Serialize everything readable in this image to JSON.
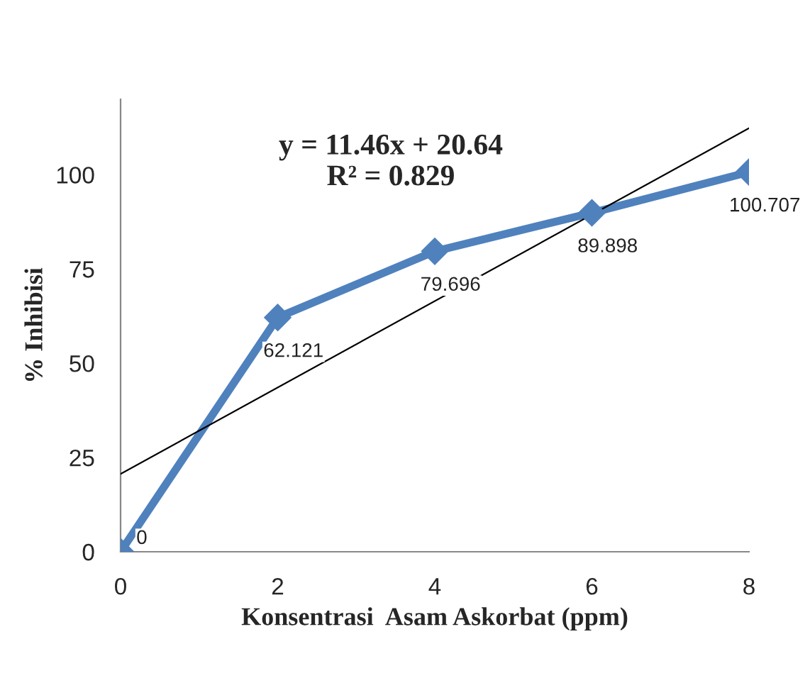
{
  "chart_data": {
    "type": "line",
    "xlabel": "Konsentrasi  Asam Askorbat (ppm)",
    "ylabel": "% Inhibisi",
    "x": [
      0,
      2,
      4,
      6,
      8
    ],
    "series": [
      {
        "color": "#4f81bd",
        "values": [
          0,
          62.121,
          79.696,
          89.898,
          100.707
        ],
        "marker": "diamond",
        "data_labels": true
      },
      {
        "color": "#000000",
        "x": [
          0,
          8
        ],
        "values": [
          20.64,
          112.32
        ],
        "marker": "none"
      }
    ],
    "annotations": [
      "y = 11.46x + 20.64\nR² = 0.829"
    ],
    "xlim": [
      0,
      8
    ],
    "xticks": [
      0,
      2,
      4,
      6,
      8
    ],
    "ylim": [
      0,
      120
    ],
    "yticks": [
      0,
      25,
      50,
      75,
      100
    ],
    "grid": false,
    "legend": false
  }
}
